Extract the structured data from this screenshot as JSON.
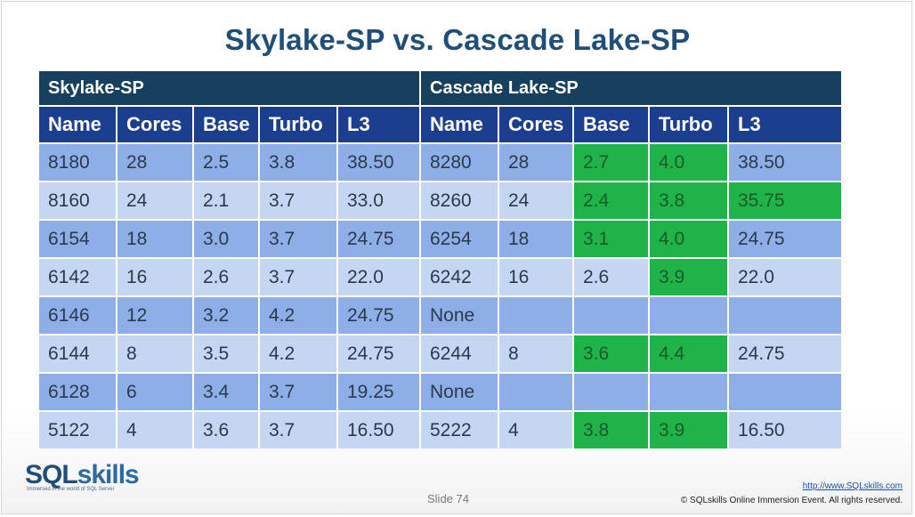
{
  "title": "Skylake-SP vs. Cascade Lake-SP",
  "groups": [
    "Skylake-SP",
    "Cascade Lake-SP"
  ],
  "columns": [
    "Name",
    "Cores",
    "Base",
    "Turbo",
    "L3",
    "Name",
    "Cores",
    "Base",
    "Turbo",
    "L3"
  ],
  "rows": [
    [
      "8180",
      "28",
      "2.5",
      "3.8",
      "38.50",
      "8280",
      "28",
      "2.7",
      "4.0",
      "38.50"
    ],
    [
      "8160",
      "24",
      "2.1",
      "3.7",
      "33.0",
      "8260",
      "24",
      "2.4",
      "3.8",
      "35.75"
    ],
    [
      "6154",
      "18",
      "3.0",
      "3.7",
      "24.75",
      "6254",
      "18",
      "3.1",
      "4.0",
      "24.75"
    ],
    [
      "6142",
      "16",
      "2.6",
      "3.7",
      "22.0",
      "6242",
      "16",
      "2.6",
      "3.9",
      "22.0"
    ],
    [
      "6146",
      "12",
      "3.2",
      "4.2",
      "24.75",
      "None",
      "",
      "",
      "",
      ""
    ],
    [
      "6144",
      "8",
      "3.5",
      "4.2",
      "24.75",
      "6244",
      "8",
      "3.6",
      "4.4",
      "24.75"
    ],
    [
      "6128",
      "6",
      "3.4",
      "3.7",
      "19.25",
      "None",
      "",
      "",
      "",
      ""
    ],
    [
      "5122",
      "4",
      "3.6",
      "3.7",
      "16.50",
      "5222",
      "4",
      "3.8",
      "3.9",
      "16.50"
    ]
  ],
  "highlight_color": "#20b34a",
  "highlighted_cells": [
    [
      0,
      7
    ],
    [
      0,
      8
    ],
    [
      1,
      7
    ],
    [
      1,
      8
    ],
    [
      1,
      9
    ],
    [
      2,
      7
    ],
    [
      2,
      8
    ],
    [
      3,
      8
    ],
    [
      5,
      7
    ],
    [
      5,
      8
    ],
    [
      7,
      7
    ],
    [
      7,
      8
    ]
  ],
  "footer": {
    "logo_text_a": "SQL",
    "logo_text_b": "skills",
    "logo_tagline": "Immersed in the world of SQL Server",
    "slide": "Slide 74",
    "url": "http://www.SQLskills.com",
    "copyright": "© SQLskills Online Immersion Event. All rights reserved."
  }
}
